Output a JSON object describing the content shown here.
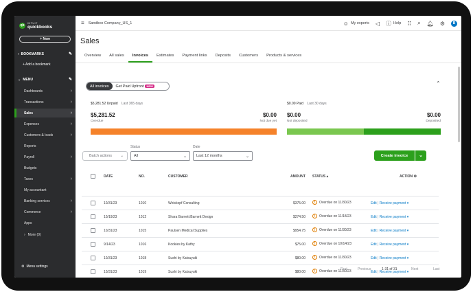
{
  "sidebar": {
    "logo_top": "INTUIT",
    "logo_name": "quickbooks",
    "new_label": "+ New",
    "bookmarks_label": "BOOKMARKS",
    "add_bookmark": "+ Add a bookmark",
    "menu_label": "MENU",
    "items": [
      {
        "label": "Dashboards",
        "chevron": true
      },
      {
        "label": "Transactions",
        "chevron": true
      },
      {
        "label": "Sales",
        "chevron": true,
        "active": true
      },
      {
        "label": "Expenses",
        "chevron": true
      },
      {
        "label": "Customers & leads",
        "chevron": true
      },
      {
        "label": "Reports",
        "chevron": false
      },
      {
        "label": "Payroll",
        "chevron": true
      },
      {
        "label": "Budgets",
        "chevron": false
      },
      {
        "label": "Taxes",
        "chevron": true
      },
      {
        "label": "My accountant",
        "chevron": false
      },
      {
        "label": "Banking services",
        "chevron": true
      },
      {
        "label": "Commerce",
        "chevron": true
      },
      {
        "label": "Apps",
        "chevron": false
      },
      {
        "label": "More (0)",
        "chevron": false
      }
    ],
    "menu_settings": "Menu settings"
  },
  "topbar": {
    "company": "Sandbox Company_US_1",
    "my_experts": "My experts",
    "help": "Help",
    "avatar": "B"
  },
  "page": {
    "title": "Sales",
    "tabs": [
      "Overview",
      "All sales",
      "Invoices",
      "Estimates",
      "Payment links",
      "Deposits",
      "Customers",
      "Products & services"
    ],
    "active_tab": "Invoices"
  },
  "toggle": {
    "all_invoices": "All invoices",
    "get_paid": "Get Paid Upfront",
    "new_badge": "NEW"
  },
  "summary": {
    "unpaid_head": "$5,281.52 Unpaid",
    "unpaid_period": "Last 365 days",
    "overdue_amount": "$5,281.52",
    "overdue_label": "Overdue",
    "not_due_amount": "$0.00",
    "not_due_label": "Not due yet",
    "paid_head": "$0.00 Paid",
    "paid_period": "Last 30 days",
    "not_deposited_amount": "$0.00",
    "not_deposited_label": "Not deposited",
    "deposited_amount": "$0.00",
    "deposited_label": "Deposited",
    "overdue_fraction": 1.0,
    "not_deposited_fraction": 0.5
  },
  "colors": {
    "brand_green": "#2ca01c",
    "overdue_orange": "#f5822a",
    "not_deposited_green": "#7ac74f",
    "deposited_green": "#2ca01c",
    "link_blue": "#0077c5"
  },
  "filters": {
    "batch_actions": "Batch actions",
    "status_label": "Status",
    "status_value": "All",
    "date_label": "Date",
    "date_value": "Last 12 months",
    "create_invoice": "Create invoice"
  },
  "table": {
    "headers": {
      "date": "DATE",
      "no": "NO.",
      "customer": "CUSTOMER",
      "amount": "AMOUNT",
      "status": "STATUS",
      "action": "ACTION"
    },
    "rows": [
      {
        "date": "10/31/23",
        "no": "1010",
        "customer": "Weiskopf Consulting",
        "amount": "$375.00",
        "status": "Overdue on 11/30/23"
      },
      {
        "date": "10/19/23",
        "no": "1012",
        "customer": "Shara Barnett:Barnett Design",
        "amount": "$274.50",
        "status": "Overdue on 11/18/23"
      },
      {
        "date": "10/31/23",
        "no": "1015",
        "customer": "Paulsen Medical Supplies",
        "amount": "$954.75",
        "status": "Overdue on 11/30/23"
      },
      {
        "date": "9/14/23",
        "no": "1016",
        "customer": "Kookies by Kathy",
        "amount": "$75.00",
        "status": "Overdue on 10/14/23"
      },
      {
        "date": "10/31/23",
        "no": "1018",
        "customer": "Sushi by Katsuyuki",
        "amount": "$80.00",
        "status": "Overdue on 11/30/23"
      },
      {
        "date": "10/31/23",
        "no": "1019",
        "customer": "Sushi by Katsuyuki",
        "amount": "$80.00",
        "status": "Overdue on 11/30/23"
      }
    ],
    "edit_label": "Edit",
    "receive_label": "Receive payment"
  },
  "pager": {
    "first": "First",
    "previous": "Previous",
    "range": "1-31 of 31",
    "next": "Next",
    "last": "Last"
  }
}
